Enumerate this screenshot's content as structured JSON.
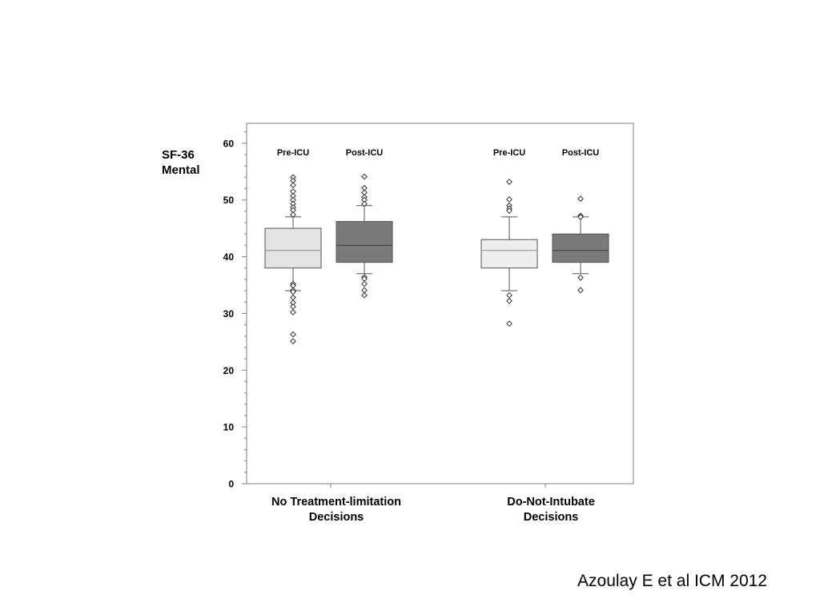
{
  "chart_data": {
    "type": "box",
    "ylabel": "SF-36\nMental",
    "ylim": [
      0,
      63.5
    ],
    "yticks": [
      0,
      10,
      20,
      30,
      40,
      50,
      60
    ],
    "ytick_labels": [
      "0",
      "10",
      "20",
      "30",
      "40",
      "50",
      "60"
    ],
    "minor_tick_step": 2,
    "groups": [
      {
        "label": "No Treatment-limitation\nDecisions",
        "series": [
          {
            "name": "Pre-ICU",
            "fill": "#e3e3e3",
            "whisker_low": 34,
            "q1": 38,
            "median": 41.1,
            "q3": 45,
            "whisker_high": 47,
            "outliers": [
              54,
              53.4,
              52.6,
              51.5,
              50.7,
              50,
              49.3,
              48.7,
              48.2,
              47.4,
              35.2,
              34.9,
              34.1,
              33.8,
              32.8,
              31.9,
              31.2,
              30.2,
              26.3,
              25.1
            ]
          },
          {
            "name": "Post-ICU",
            "fill": "#7a7a7a",
            "whisker_low": 37,
            "q1": 39,
            "median": 42,
            "q3": 46.2,
            "whisker_high": 49,
            "outliers": [
              54.1,
              52.1,
              51.3,
              50.5,
              50,
              49.3,
              36.4,
              36.1,
              35.2,
              34.1,
              33.2
            ]
          }
        ]
      },
      {
        "label": "Do-Not-Intubate\nDecisions",
        "series": [
          {
            "name": "Pre-ICU",
            "fill": "#eeeeee",
            "whisker_low": 34,
            "q1": 38,
            "median": 41.1,
            "q3": 43,
            "whisker_high": 47,
            "outliers": [
              53.2,
              50.1,
              49,
              48.5,
              48.1,
              33.2,
              32.2,
              28.2
            ]
          },
          {
            "name": "Post-ICU",
            "fill": "#7a7a7a",
            "whisker_low": 37,
            "q1": 39,
            "median": 41.1,
            "q3": 44,
            "whisker_high": 47,
            "outliers": [
              50.2,
              47.2,
              47,
              36.3,
              34.1
            ]
          }
        ]
      }
    ]
  },
  "source_note": "Azoulay E et al ICM 2012"
}
